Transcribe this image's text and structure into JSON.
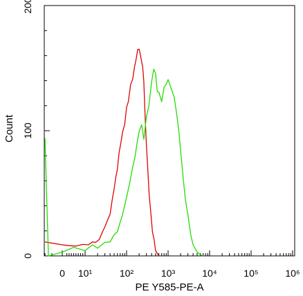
{
  "chart_data": {
    "type": "line",
    "title": "",
    "xlabel": "PE Y585-PE-A",
    "ylabel": "Count",
    "x_scale": "biexponential",
    "x_tick_labels": [
      "0",
      "10¹",
      "10²",
      "10³",
      "10⁴",
      "10⁵",
      "10⁶"
    ],
    "x_tick_values": [
      0,
      10,
      100,
      1000,
      10000,
      100000,
      1000000
    ],
    "y_tick_labels": [
      "0",
      "100",
      "200"
    ],
    "y_tick_values": [
      0,
      100,
      200
    ],
    "ylim": [
      0,
      200
    ],
    "grid": false,
    "legend": "none",
    "series": [
      {
        "color": "#dd0000",
        "x": [
          -5,
          0,
          3,
          6,
          9,
          12,
          15,
          18,
          22,
          26,
          30,
          35,
          40,
          45,
          50,
          55,
          60,
          66,
          72,
          80,
          90,
          100,
          110,
          125,
          140,
          155,
          170,
          185,
          200,
          215,
          230,
          245,
          260,
          280,
          300,
          320,
          350,
          380,
          420,
          460,
          500,
          550,
          600
        ],
        "y": [
          12,
          8,
          9,
          7,
          10,
          8,
          12,
          10,
          14,
          18,
          24,
          28,
          34,
          44,
          54,
          62,
          70,
          82,
          90,
          98,
          106,
          118,
          124,
          136,
          142,
          150,
          158,
          164,
          166,
          160,
          156,
          150,
          140,
          110,
          90,
          72,
          50,
          35,
          20,
          12,
          5,
          2,
          0
        ]
      },
      {
        "color": "#22dd00",
        "x": [
          -5,
          -4,
          0,
          5,
          10,
          15,
          20,
          30,
          40,
          50,
          60,
          70,
          80,
          100,
          120,
          140,
          160,
          180,
          200,
          230,
          260,
          300,
          350,
          400,
          450,
          500,
          550,
          600,
          700,
          800,
          900,
          1000,
          1200,
          1400,
          1600,
          1800,
          2000,
          2300,
          2600,
          3000,
          3500,
          4000,
          5000,
          6000,
          7000
        ],
        "y": [
          95,
          0,
          3,
          6,
          5,
          8,
          7,
          10,
          12,
          16,
          20,
          26,
          34,
          46,
          60,
          70,
          80,
          90,
          100,
          104,
          94,
          110,
          122,
          138,
          150,
          145,
          132,
          130,
          124,
          134,
          138,
          140,
          134,
          126,
          115,
          100,
          85,
          62,
          46,
          32,
          18,
          8,
          3,
          1,
          0
        ]
      }
    ]
  }
}
